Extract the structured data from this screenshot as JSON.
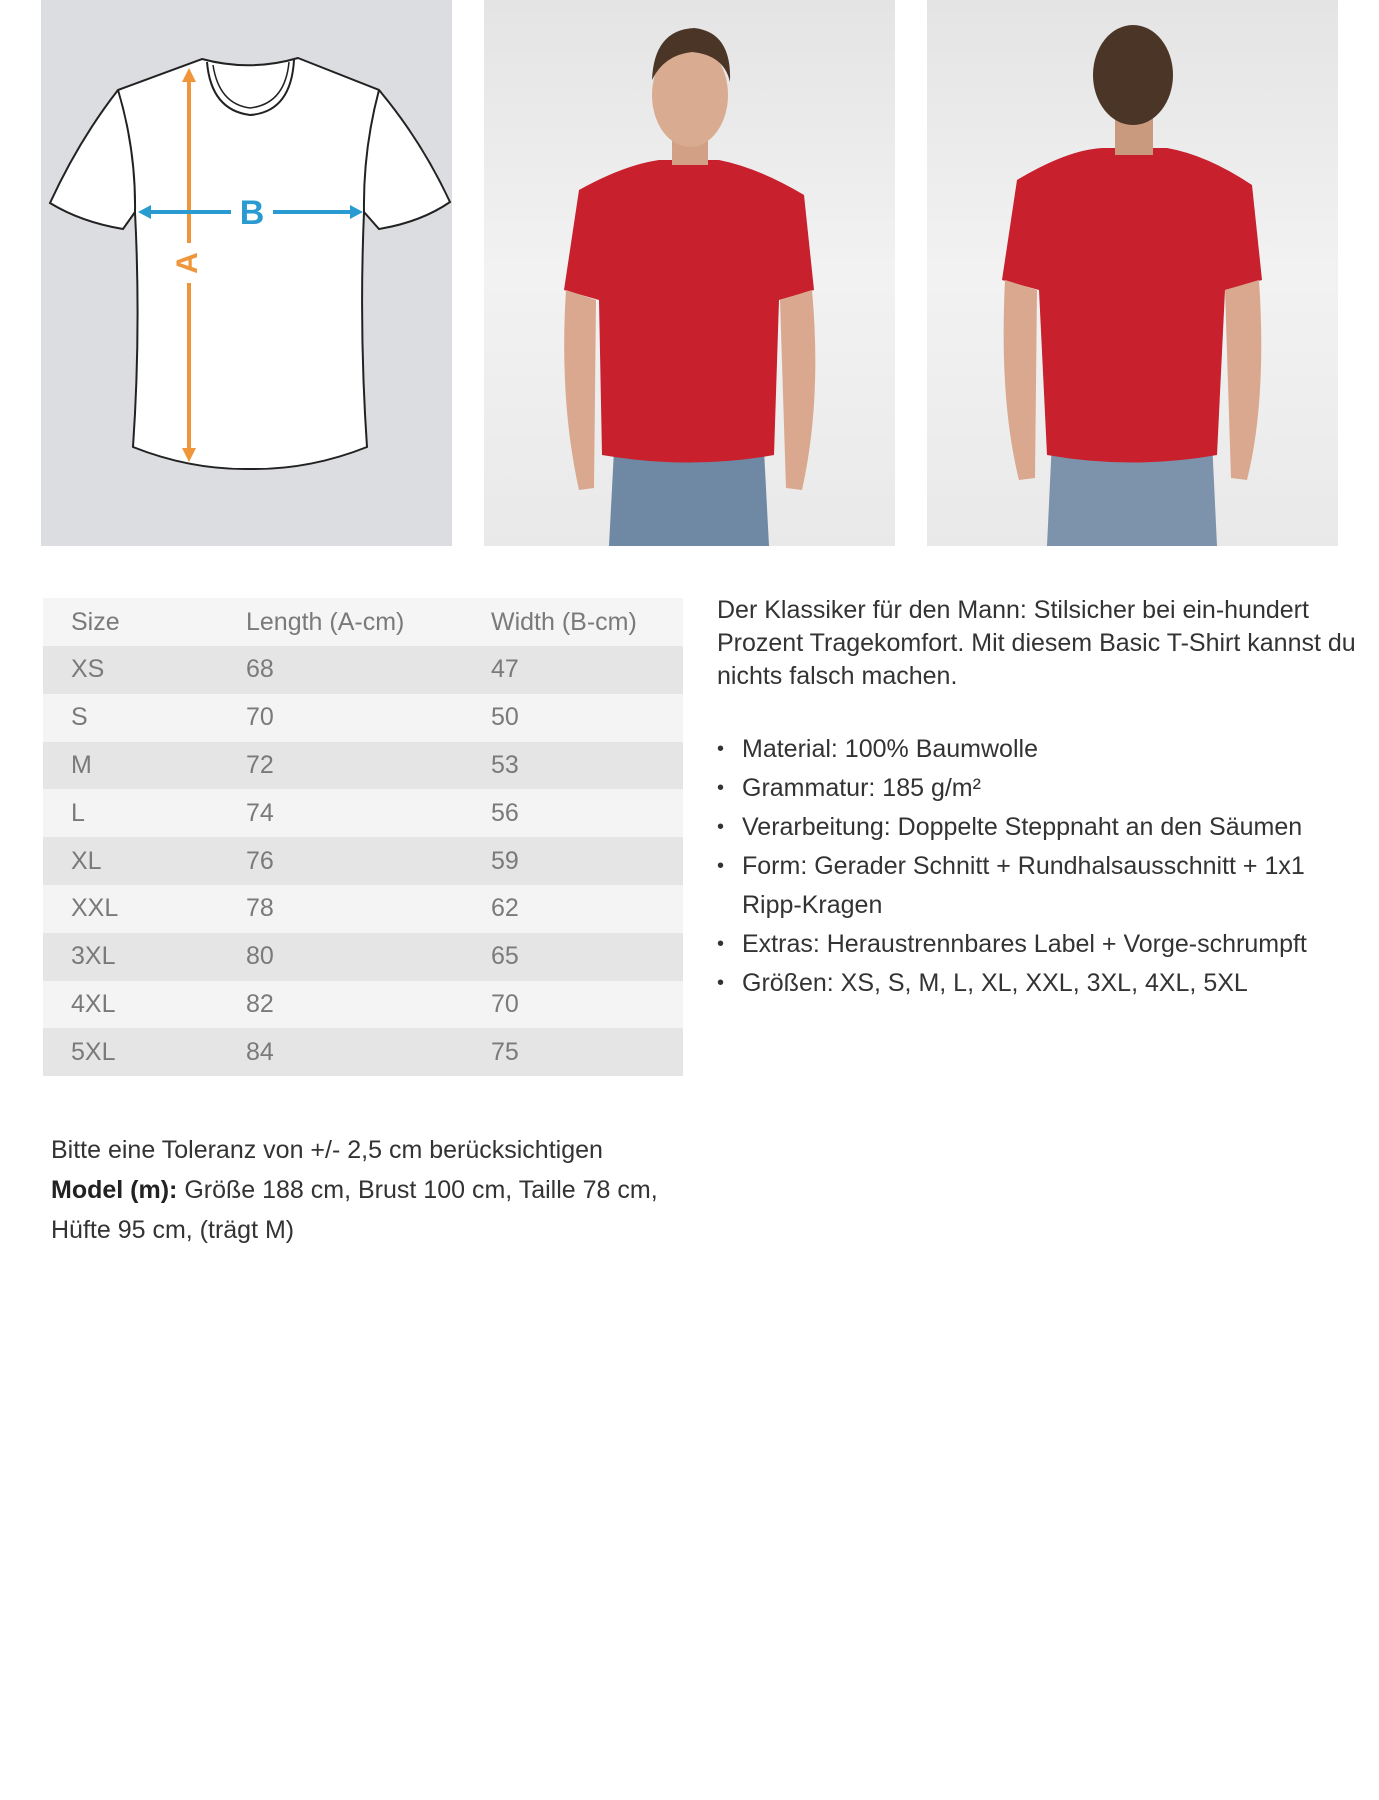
{
  "diagram": {
    "length_letter": "A",
    "width_letter": "B",
    "colors": {
      "length_arrow": "#f0963a",
      "width_arrow": "#2a9bd0",
      "background": "#dcdde0"
    }
  },
  "photos": [
    {
      "view": "front",
      "shirt_color": "#c8202c"
    },
    {
      "view": "back",
      "shirt_color": "#c8202c"
    }
  ],
  "size_table": {
    "headers": [
      "Size",
      "Length (A-cm)",
      "Width (B-cm)"
    ],
    "rows": [
      [
        "XS",
        "68",
        "47"
      ],
      [
        "S",
        "70",
        "50"
      ],
      [
        "M",
        "72",
        "53"
      ],
      [
        "L",
        "74",
        "56"
      ],
      [
        "XL",
        "76",
        "59"
      ],
      [
        "XXL",
        "78",
        "62"
      ],
      [
        "3XL",
        "80",
        "65"
      ],
      [
        "4XL",
        "82",
        "70"
      ],
      [
        "5XL",
        "84",
        "75"
      ]
    ]
  },
  "description": "Der Klassiker für den Mann: Stilsicher bei ein-hundert Prozent Tragekomfort. Mit diesem Basic T-Shirt kannst du nichts falsch machen.",
  "features": [
    "Material: 100% Baumwolle",
    "Grammatur: 185 g/m²",
    "Verarbeitung: Doppelte Steppnaht an den Säumen",
    "Form: Gerader Schnitt + Rundhalsausschnitt + 1x1 Ripp-Kragen",
    "Extras: Heraustrennbares Label + Vorge-schrumpft",
    "Größen: XS, S, M, L, XL, XXL, 3XL, 4XL, 5XL"
  ],
  "note": {
    "tolerance": "Bitte eine Toleranz von +/- 2,5 cm berücksichtigen",
    "model_label": "Model (m):",
    "model_text": "Größe 188 cm, Brust 100 cm, Taille 78 cm, Hüfte 95 cm, (trägt M)"
  }
}
